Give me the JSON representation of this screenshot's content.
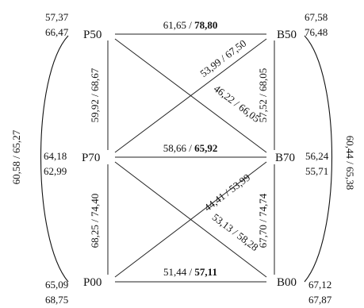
{
  "nodes": {
    "P50": {
      "label": "P50",
      "values": [
        "57,37",
        "66,47"
      ]
    },
    "B50": {
      "label": "B50",
      "values": [
        "67,58",
        "76,48"
      ]
    },
    "P70": {
      "label": "P70",
      "values": [
        "64,18",
        "62,99"
      ]
    },
    "B70": {
      "label": "B70",
      "values": [
        "56,24",
        "55,71"
      ]
    },
    "P00": {
      "label": "P00",
      "values": [
        "65,09",
        "68,75"
      ]
    },
    "B00": {
      "label": "B00",
      "values": [
        "67,12",
        "67,87"
      ]
    }
  },
  "edges": {
    "p50_b50": {
      "plain": "61,65 / ",
      "bold": "78,80"
    },
    "p70_b70": {
      "plain": "58,66 / ",
      "bold": "65,92"
    },
    "p00_b00": {
      "plain": "51,44 / ",
      "bold": "57,11"
    },
    "p50_p70": {
      "text": "59,92 / 68,67"
    },
    "p70_p00": {
      "text": "68,25 / 74,40"
    },
    "b50_b70": {
      "text": "57,52 / 68,05"
    },
    "b70_b00": {
      "text": "67,70 / 74,74"
    },
    "p70_b50": {
      "text": "53,99 / 67,50"
    },
    "p50_b70": {
      "text": "46,22 / 66,05"
    },
    "p00_b70": {
      "text": "44,41 / 53,99"
    },
    "p70_b00": {
      "text": "53,13 / 58,28"
    }
  },
  "arcs": {
    "left": {
      "text": "60,58 / 65,27"
    },
    "right": {
      "text": "60,44 / 65,38"
    }
  }
}
